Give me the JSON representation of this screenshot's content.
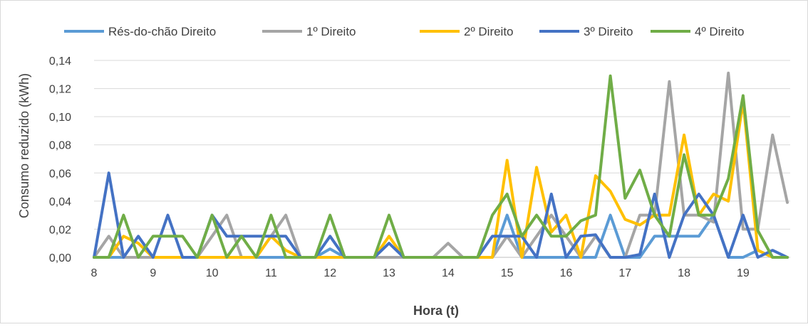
{
  "chart_data": {
    "type": "line",
    "xlabel": "Hora (t)",
    "ylabel": "Consumo reduzido (kWh)",
    "ylim": [
      0,
      0.14
    ],
    "yticks": [
      "0,00",
      "0,02",
      "0,04",
      "0,06",
      "0,08",
      "0,10",
      "0,12",
      "0,14"
    ],
    "xticks": [
      "8",
      "9",
      "10",
      "11",
      "12",
      "13",
      "14",
      "15",
      "16",
      "17",
      "18",
      "19"
    ],
    "xlim": [
      8,
      19.75
    ],
    "grid": "horizontal",
    "legend_position": "top",
    "x": [
      8,
      8.25,
      8.5,
      8.75,
      9,
      9.25,
      9.5,
      9.75,
      10,
      10.25,
      10.5,
      10.75,
      11,
      11.25,
      11.5,
      11.75,
      12,
      12.25,
      12.5,
      12.75,
      13,
      13.25,
      13.5,
      13.75,
      14,
      14.25,
      14.5,
      14.75,
      15,
      15.25,
      15.5,
      15.75,
      16,
      16.25,
      16.5,
      16.75,
      17,
      17.25,
      17.5,
      17.75,
      18,
      18.25,
      18.5,
      18.75,
      19,
      19.25,
      19.5,
      19.75
    ],
    "series": [
      {
        "name": "Rés-do-chão Direito",
        "color": "#5b9bd5",
        "values": [
          0,
          0,
          0,
          0,
          0,
          0,
          0,
          0,
          0,
          0,
          0,
          0,
          0,
          0,
          0,
          0,
          0.006,
          0,
          0,
          0,
          0,
          0,
          0,
          0,
          0,
          0,
          0,
          0,
          0.03,
          0,
          0,
          0,
          0,
          0,
          0,
          0.03,
          0,
          0,
          0.015,
          0.015,
          0.015,
          0.015,
          0.03,
          0,
          0,
          0.005,
          0,
          0
        ]
      },
      {
        "name": "1º Direito",
        "color": "#a5a5a5",
        "values": [
          0,
          0.015,
          0,
          0,
          0,
          0,
          0,
          0,
          0.015,
          0.03,
          0,
          0,
          0.015,
          0.03,
          0,
          0,
          0,
          0,
          0,
          0,
          0,
          0,
          0,
          0,
          0.01,
          0,
          0,
          0,
          0.015,
          0,
          0.015,
          0.03,
          0.015,
          0,
          0.015,
          0,
          0,
          0.03,
          0.03,
          0.125,
          0.03,
          0.03,
          0.025,
          0.131,
          0.02,
          0.02,
          0.087,
          0.039
        ]
      },
      {
        "name": "2º Direito",
        "color": "#ffc000",
        "values": [
          0,
          0,
          0.015,
          0.01,
          0,
          0,
          0,
          0,
          0,
          0,
          0,
          0,
          0.015,
          0.005,
          0,
          0,
          0,
          0,
          0,
          0,
          0.015,
          0,
          0,
          0,
          0,
          0,
          0,
          0,
          0.069,
          0,
          0.064,
          0.018,
          0.03,
          0,
          0.058,
          0.047,
          0.027,
          0.023,
          0.03,
          0.03,
          0.087,
          0.03,
          0.045,
          0.04,
          0.111,
          0.005,
          0,
          0
        ]
      },
      {
        "name": "3º Direito",
        "color": "#4472c4",
        "values": [
          0,
          0.06,
          0,
          0.015,
          0,
          0.03,
          0,
          0,
          0.03,
          0.015,
          0.015,
          0.015,
          0.015,
          0.015,
          0,
          0,
          0.015,
          0,
          0,
          0,
          0.01,
          0,
          0,
          0,
          0,
          0,
          0,
          0.015,
          0.015,
          0.015,
          0,
          0.045,
          0,
          0.015,
          0.016,
          0,
          0,
          0.002,
          0.045,
          0,
          0.03,
          0.045,
          0.03,
          0,
          0.03,
          0,
          0.005,
          0
        ]
      },
      {
        "name": "4º Direito",
        "color": "#70ad47",
        "values": [
          0,
          0,
          0.03,
          0,
          0.015,
          0.015,
          0.015,
          0,
          0.03,
          0,
          0.015,
          0,
          0.03,
          0,
          0,
          0,
          0.03,
          0,
          0,
          0,
          0.03,
          0,
          0,
          0,
          0,
          0,
          0,
          0.03,
          0.045,
          0.015,
          0.03,
          0.015,
          0.015,
          0.026,
          0.03,
          0.129,
          0.042,
          0.062,
          0.03,
          0.015,
          0.073,
          0.03,
          0.03,
          0.056,
          0.115,
          0.019,
          0,
          0
        ]
      }
    ]
  }
}
